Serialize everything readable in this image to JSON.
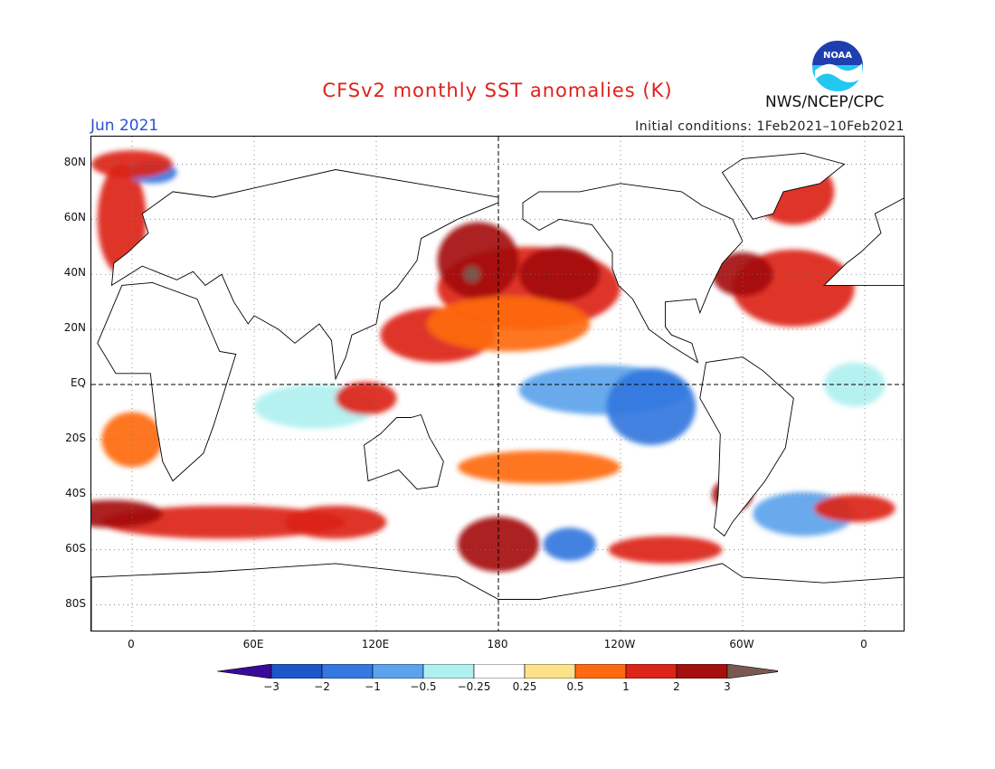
{
  "title": "CFSv2 monthly SST anomalies (K)",
  "valid_month": "Jun 2021",
  "initial_conditions": "Initial conditions: 1Feb2021–10Feb2021",
  "agency": "NWS/NCEP/CPC",
  "logo": {
    "text": "NOAA",
    "icon": "noaa-logo-icon",
    "colors": {
      "top": "#1f3fb0",
      "bottom": "#22c8f0",
      "bird": "#ffffff"
    }
  },
  "map": {
    "projection": "equirectangular",
    "lon_range": [
      -20,
      380
    ],
    "lat_range": [
      -90,
      90
    ],
    "reference_lines": [
      "Equator",
      "180"
    ],
    "grid": "dotted",
    "lat_ticks": [
      {
        "lat": 80,
        "label": "80N"
      },
      {
        "lat": 60,
        "label": "60N"
      },
      {
        "lat": 40,
        "label": "40N"
      },
      {
        "lat": 20,
        "label": "20N"
      },
      {
        "lat": 0,
        "label": "EQ"
      },
      {
        "lat": -20,
        "label": "20S"
      },
      {
        "lat": -40,
        "label": "40S"
      },
      {
        "lat": -60,
        "label": "60S"
      },
      {
        "lat": -80,
        "label": "80S"
      }
    ],
    "lon_ticks": [
      {
        "lon": 0,
        "label": "0"
      },
      {
        "lon": 60,
        "label": "60E"
      },
      {
        "lon": 120,
        "label": "120E"
      },
      {
        "lon": 180,
        "label": "180"
      },
      {
        "lon": 240,
        "label": "120W"
      },
      {
        "lon": 300,
        "label": "60W"
      },
      {
        "lon": 360,
        "label": "0"
      }
    ]
  },
  "colorbar": {
    "labels": [
      "−3",
      "−2",
      "−1",
      "−0.5",
      "−0.25",
      "0.25",
      "0.5",
      "1",
      "2",
      "3"
    ],
    "colors": [
      "#3a0a9a",
      "#1d56c8",
      "#3478e0",
      "#5ba3ec",
      "#b0f0f0",
      "#ffffff",
      "#fde28a",
      "#ff6a10",
      "#dc2418",
      "#a5100f",
      "#7a5a50"
    ]
  },
  "chart_data": {
    "type": "heatmap",
    "variable": "SST anomalies (K)",
    "levels": [
      -3,
      -2,
      -1,
      -0.5,
      -0.25,
      0.25,
      0.5,
      1,
      2,
      3
    ],
    "regions": [
      {
        "lon": 195,
        "lat": 35,
        "rx": 45,
        "ry": 15,
        "value": 1.2
      },
      {
        "lon": 210,
        "lat": 40,
        "rx": 20,
        "ry": 10,
        "value": 2.2
      },
      {
        "lon": 170,
        "lat": 45,
        "rx": 20,
        "ry": 14,
        "value": 2.0
      },
      {
        "lon": 167,
        "lat": 40,
        "rx": 4,
        "ry": 3,
        "value": 3.2
      },
      {
        "lon": 150,
        "lat": 18,
        "rx": 28,
        "ry": 10,
        "value": 1.2
      },
      {
        "lon": 185,
        "lat": 22,
        "rx": 40,
        "ry": 10,
        "value": 0.6
      },
      {
        "lon": 232,
        "lat": -2,
        "rx": 42,
        "ry": 9,
        "value": -0.7
      },
      {
        "lon": 255,
        "lat": -8,
        "rx": 22,
        "ry": 14,
        "value": -1.2
      },
      {
        "lon": 200,
        "lat": -30,
        "rx": 40,
        "ry": 6,
        "value": 0.8
      },
      {
        "lon": 180,
        "lat": -58,
        "rx": 20,
        "ry": 10,
        "value": 2.2
      },
      {
        "lon": 215,
        "lat": -58,
        "rx": 13,
        "ry": 6,
        "value": -1.5
      },
      {
        "lon": 262,
        "lat": -60,
        "rx": 28,
        "ry": 5,
        "value": 1.5
      },
      {
        "lon": 45,
        "lat": -50,
        "rx": 60,
        "ry": 6,
        "value": 1.8
      },
      {
        "lon": -10,
        "lat": -47,
        "rx": 25,
        "ry": 5,
        "value": 2.2
      },
      {
        "lon": 100,
        "lat": -50,
        "rx": 25,
        "ry": 6,
        "value": 1.5
      },
      {
        "lon": 295,
        "lat": -40,
        "rx": 10,
        "ry": 6,
        "value": 2.5
      },
      {
        "lon": 330,
        "lat": -47,
        "rx": 25,
        "ry": 8,
        "value": -0.8
      },
      {
        "lon": 355,
        "lat": -45,
        "rx": 20,
        "ry": 5,
        "value": 1.8
      },
      {
        "lon": 325,
        "lat": 35,
        "rx": 30,
        "ry": 14,
        "value": 1.2
      },
      {
        "lon": 300,
        "lat": 40,
        "rx": 15,
        "ry": 8,
        "value": 2.0
      },
      {
        "lon": 325,
        "lat": 70,
        "rx": 20,
        "ry": 12,
        "value": 1.5
      },
      {
        "lon": -5,
        "lat": 60,
        "rx": 12,
        "ry": 20,
        "value": 1.2
      },
      {
        "lon": 10,
        "lat": 77,
        "rx": 12,
        "ry": 4,
        "value": -1.2
      },
      {
        "lon": 0,
        "lat": 80,
        "rx": 20,
        "ry": 5,
        "value": 1.5
      },
      {
        "lon": 90,
        "lat": -8,
        "rx": 30,
        "ry": 8,
        "value": -0.5
      },
      {
        "lon": 115,
        "lat": -5,
        "rx": 15,
        "ry": 6,
        "value": 1.0
      },
      {
        "lon": 355,
        "lat": 0,
        "rx": 15,
        "ry": 8,
        "value": -0.5
      },
      {
        "lon": 0,
        "lat": -20,
        "rx": 15,
        "ry": 10,
        "value": 0.5
      }
    ]
  }
}
